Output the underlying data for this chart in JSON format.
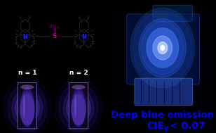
{
  "bg_color": "#000000",
  "struct_bg": "#d0d0d0",
  "struct_bond_color": "#222222",
  "struct_N_color": "#2222ff",
  "struct_S_color": "#aa00aa",
  "struct_O_color": "#aa00aa",
  "vial_bg": "#040408",
  "label_n1": "n = 1",
  "label_n2": "n = 2",
  "label_color": "#ffffff",
  "label_fontsize": 6.5,
  "text_line1": "Deep blue emission",
  "text_line2_pre": "CIE",
  "text_line2_sub": "y",
  "text_line2_post": " < 0.07",
  "text_color": "#0000ff",
  "text_fontsize": 9.5,
  "right_bg": "#000000",
  "device_body_color": "#001a4d",
  "device_edge_color": "#1133aa",
  "socket_color": "#112266",
  "led_colors": [
    "#4499ff",
    "#3377ff",
    "#5588ff",
    "#88aaff",
    "#ccddff",
    "#ffffff"
  ],
  "led_alphas": [
    0.12,
    0.22,
    0.38,
    0.55,
    0.75,
    1.0
  ],
  "led_radii": [
    3.0,
    2.2,
    1.5,
    0.9,
    0.45,
    0.18
  ]
}
